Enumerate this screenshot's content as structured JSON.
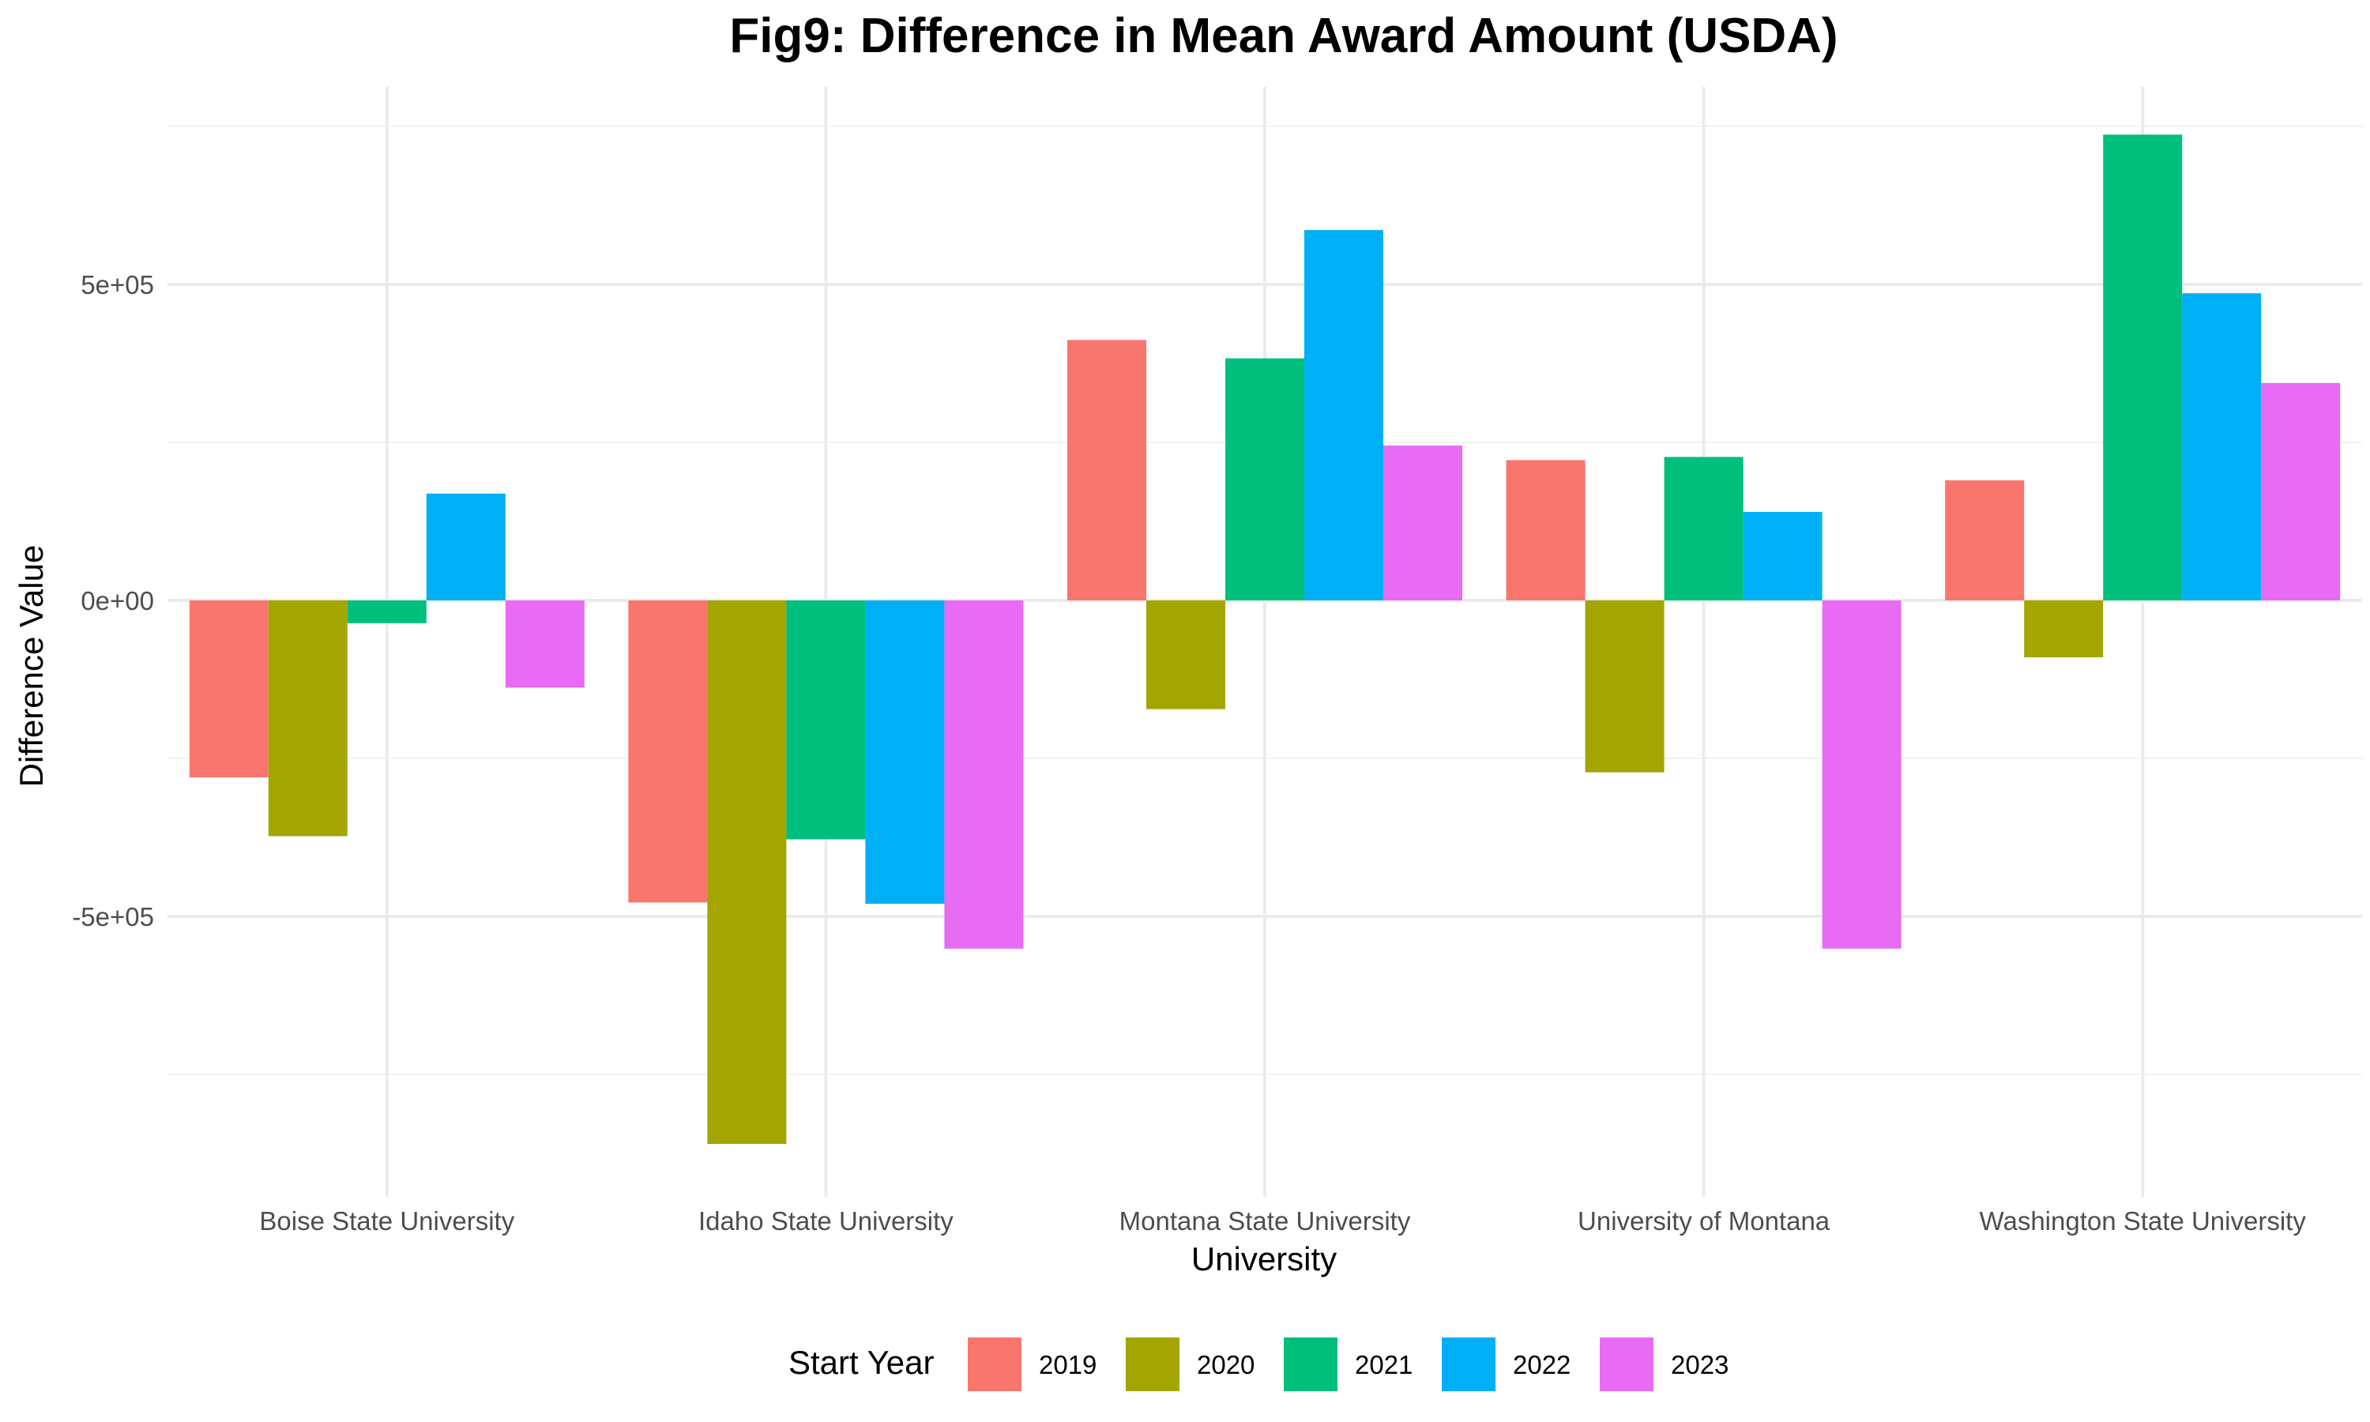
{
  "chart_data": {
    "type": "bar",
    "title": "Fig9: Difference in Mean Award Amount (USDA)",
    "xlabel": "University",
    "ylabel": "Difference Value",
    "categories": [
      "Boise State University",
      "Idaho State University",
      "Montana State University",
      "University of Montana",
      "Washington State University"
    ],
    "series": [
      {
        "name": "2019",
        "color": "#F8766D",
        "values": [
          -280000,
          -478000,
          412000,
          222000,
          190000
        ]
      },
      {
        "name": "2020",
        "color": "#A3A500",
        "values": [
          -373000,
          -860000,
          -172000,
          -272000,
          -90000
        ]
      },
      {
        "name": "2021",
        "color": "#00BF7D",
        "values": [
          -36000,
          -378000,
          383000,
          227000,
          737000
        ]
      },
      {
        "name": "2022",
        "color": "#00B0F6",
        "values": [
          169000,
          -480000,
          586000,
          140000,
          486000
        ]
      },
      {
        "name": "2023",
        "color": "#E76BF3",
        "values": [
          -138000,
          -551000,
          245000,
          -551000,
          344000
        ]
      }
    ],
    "ylim": [
      -945000,
      745000
    ],
    "y_ticks": [
      -500000,
      0,
      500000
    ],
    "y_tick_labels": [
      "-5e+05",
      "0e+00",
      "5e+05"
    ],
    "grid": true,
    "legend": {
      "title": "Start Year",
      "position": "bottom"
    }
  }
}
